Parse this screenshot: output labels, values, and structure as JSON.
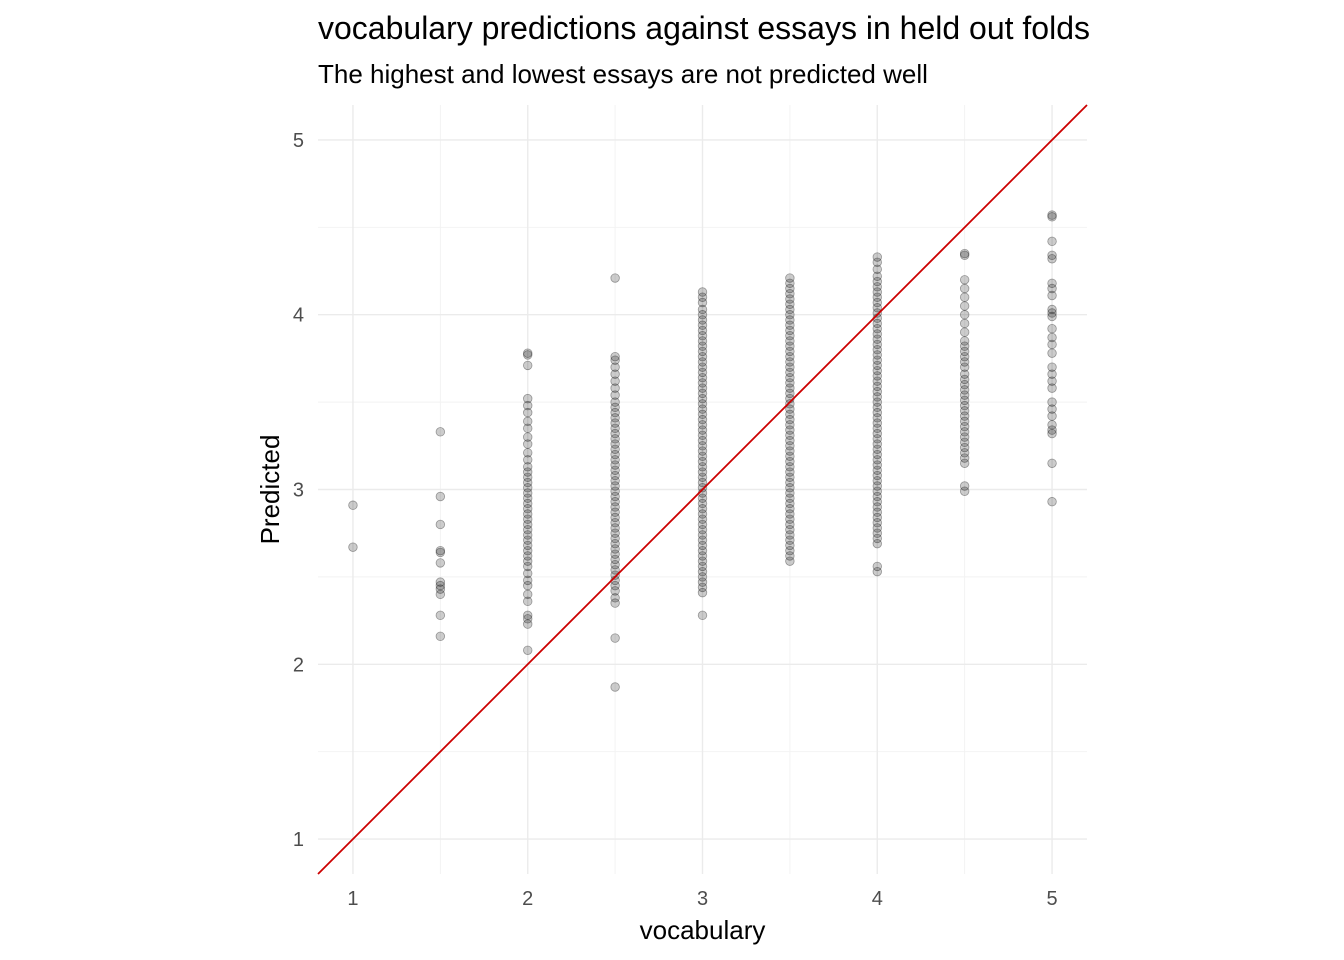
{
  "chart_data": {
    "type": "scatter",
    "title": "vocabulary predictions against essays in held out folds",
    "subtitle": "The highest and lowest essays are not predicted well",
    "xlabel": "vocabulary",
    "ylabel": "Predicted",
    "xlim": [
      0.8,
      5.2
    ],
    "ylim": [
      0.8,
      5.2
    ],
    "x_ticks": [
      1,
      2,
      3,
      4,
      5
    ],
    "y_ticks": [
      1,
      2,
      3,
      4,
      5
    ],
    "grid": true,
    "point_color": "#000000",
    "point_alpha": 0.2,
    "reference_line": {
      "slope": 1,
      "intercept": 0,
      "color": "#cc0000"
    },
    "points": [
      {
        "x": 1.0,
        "y": [
          2.91,
          2.67
        ]
      },
      {
        "x": 1.5,
        "y": [
          3.33,
          2.96,
          2.8,
          2.65,
          2.64,
          2.58,
          2.47,
          2.45,
          2.43,
          2.4,
          2.28,
          2.16
        ]
      },
      {
        "x": 2.0,
        "y": [
          3.78,
          3.77,
          3.71,
          3.52,
          3.48,
          3.44,
          3.39,
          3.35,
          3.3,
          3.26,
          3.21,
          3.17,
          3.13,
          3.1,
          3.07,
          3.04,
          3.01,
          2.98,
          2.95,
          2.92,
          2.89,
          2.86,
          2.83,
          2.8,
          2.77,
          2.74,
          2.71,
          2.68,
          2.65,
          2.62,
          2.59,
          2.56,
          2.52,
          2.48,
          2.45,
          2.4,
          2.36,
          2.28,
          2.26,
          2.23,
          2.08
        ]
      },
      {
        "x": 2.5,
        "y": [
          4.21,
          3.76,
          3.74,
          3.7,
          3.66,
          3.62,
          3.58,
          3.54,
          3.5,
          3.47,
          3.44,
          3.41,
          3.38,
          3.35,
          3.32,
          3.29,
          3.26,
          3.23,
          3.2,
          3.17,
          3.14,
          3.11,
          3.08,
          3.05,
          3.02,
          2.99,
          2.96,
          2.93,
          2.9,
          2.87,
          2.84,
          2.81,
          2.78,
          2.75,
          2.72,
          2.69,
          2.66,
          2.63,
          2.6,
          2.57,
          2.54,
          2.51,
          2.48,
          2.45,
          2.42,
          2.38,
          2.35,
          2.15,
          1.87
        ]
      },
      {
        "x": 3.0,
        "y": [
          4.13,
          4.1,
          4.07,
          4.03,
          4.0,
          3.97,
          3.94,
          3.91,
          3.88,
          3.85,
          3.82,
          3.79,
          3.76,
          3.73,
          3.7,
          3.67,
          3.64,
          3.61,
          3.58,
          3.55,
          3.52,
          3.49,
          3.46,
          3.43,
          3.4,
          3.37,
          3.34,
          3.31,
          3.28,
          3.25,
          3.22,
          3.19,
          3.16,
          3.13,
          3.1,
          3.07,
          3.04,
          3.01,
          2.98,
          2.95,
          2.92,
          2.89,
          2.86,
          2.83,
          2.8,
          2.77,
          2.74,
          2.71,
          2.68,
          2.65,
          2.62,
          2.59,
          2.56,
          2.53,
          2.5,
          2.47,
          2.44,
          2.41,
          2.28
        ]
      },
      {
        "x": 3.5,
        "y": [
          4.21,
          4.18,
          4.15,
          4.12,
          4.09,
          4.06,
          4.03,
          4.0,
          3.97,
          3.94,
          3.91,
          3.88,
          3.85,
          3.82,
          3.79,
          3.76,
          3.73,
          3.7,
          3.67,
          3.64,
          3.61,
          3.58,
          3.55,
          3.52,
          3.49,
          3.46,
          3.43,
          3.4,
          3.37,
          3.34,
          3.31,
          3.28,
          3.25,
          3.22,
          3.19,
          3.16,
          3.13,
          3.1,
          3.07,
          3.04,
          3.01,
          2.98,
          2.95,
          2.92,
          2.89,
          2.86,
          2.83,
          2.8,
          2.77,
          2.74,
          2.71,
          2.68,
          2.65,
          2.62,
          2.59
        ]
      },
      {
        "x": 4.0,
        "y": [
          4.33,
          4.3,
          4.26,
          4.22,
          4.19,
          4.16,
          4.13,
          4.1,
          4.07,
          4.04,
          4.01,
          3.98,
          3.95,
          3.92,
          3.89,
          3.86,
          3.83,
          3.8,
          3.77,
          3.74,
          3.71,
          3.68,
          3.65,
          3.62,
          3.59,
          3.56,
          3.53,
          3.5,
          3.47,
          3.44,
          3.41,
          3.38,
          3.35,
          3.32,
          3.29,
          3.26,
          3.23,
          3.2,
          3.17,
          3.14,
          3.11,
          3.08,
          3.05,
          3.02,
          2.99,
          2.96,
          2.93,
          2.9,
          2.87,
          2.84,
          2.81,
          2.78,
          2.75,
          2.72,
          2.69,
          2.56,
          2.53
        ]
      },
      {
        "x": 4.5,
        "y": [
          4.35,
          4.34,
          4.2,
          4.15,
          4.1,
          4.05,
          4.0,
          3.95,
          3.9,
          3.85,
          3.82,
          3.79,
          3.76,
          3.73,
          3.7,
          3.66,
          3.63,
          3.6,
          3.57,
          3.54,
          3.51,
          3.48,
          3.45,
          3.42,
          3.39,
          3.36,
          3.33,
          3.3,
          3.27,
          3.24,
          3.21,
          3.18,
          3.15,
          3.02,
          2.99
        ]
      },
      {
        "x": 5.0,
        "y": [
          4.57,
          4.56,
          4.42,
          4.34,
          4.32,
          4.18,
          4.15,
          4.11,
          4.03,
          4.01,
          3.99,
          3.92,
          3.87,
          3.83,
          3.78,
          3.7,
          3.66,
          3.62,
          3.58,
          3.5,
          3.46,
          3.42,
          3.37,
          3.34,
          3.32,
          3.15,
          2.93
        ]
      }
    ]
  }
}
